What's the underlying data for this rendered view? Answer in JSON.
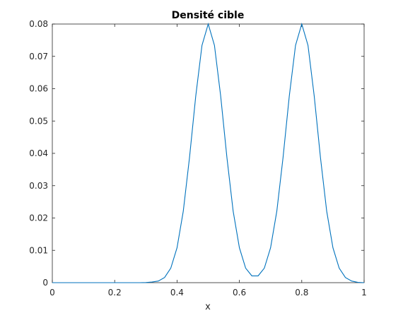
{
  "chart_data": {
    "type": "line",
    "title": "Densité cible",
    "xlabel": "x",
    "ylabel": "",
    "xlim": [
      0,
      1
    ],
    "ylim": [
      0,
      0.08
    ],
    "xticks": [
      "0",
      "0.2",
      "0.4",
      "0.6",
      "0.8",
      "1"
    ],
    "xtick_values": [
      0,
      0.2,
      0.4,
      0.6,
      0.8,
      1
    ],
    "yticks": [
      "0",
      "0.01",
      "0.02",
      "0.03",
      "0.04",
      "0.05",
      "0.06",
      "0.07",
      "0.08"
    ],
    "ytick_values": [
      0,
      0.01,
      0.02,
      0.03,
      0.04,
      0.05,
      0.06,
      0.07,
      0.08
    ],
    "grid": false,
    "series": [
      {
        "color": "#0072BD",
        "x": [
          0,
          0.02,
          0.04,
          0.06,
          0.08,
          0.1,
          0.12,
          0.14,
          0.16,
          0.18,
          0.2,
          0.22,
          0.24,
          0.26,
          0.28,
          0.3,
          0.32,
          0.34,
          0.36,
          0.38,
          0.4,
          0.42,
          0.44,
          0.46,
          0.48,
          0.5,
          0.52,
          0.54,
          0.56,
          0.58,
          0.6,
          0.62,
          0.64,
          0.66,
          0.68,
          0.7,
          0.72,
          0.74,
          0.76,
          0.78,
          0.8,
          0.82,
          0.84,
          0.86,
          0.88,
          0.9,
          0.92,
          0.94,
          0.96,
          0.98,
          1
        ],
        "y": [
          0,
          0,
          0,
          0,
          0,
          0,
          0,
          0,
          0,
          0,
          0,
          0,
          0,
          0,
          0,
          5e-05,
          0.0002,
          0.0005,
          0.0016,
          0.0045,
          0.0108,
          0.0221,
          0.0387,
          0.0577,
          0.0734,
          0.08,
          0.0734,
          0.0577,
          0.0387,
          0.0221,
          0.0108,
          0.0045,
          0.0021,
          0.0021,
          0.0045,
          0.0108,
          0.0221,
          0.0387,
          0.0577,
          0.0734,
          0.08,
          0.0734,
          0.0577,
          0.0387,
          0.0221,
          0.0108,
          0.0045,
          0.0016,
          0.0005,
          0.0001,
          0
        ]
      }
    ]
  }
}
